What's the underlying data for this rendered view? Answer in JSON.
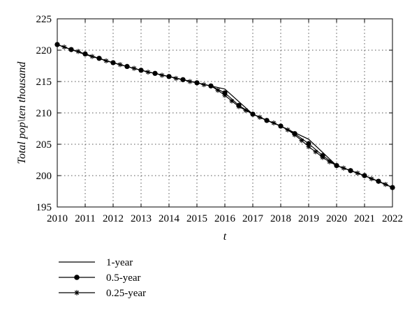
{
  "chart_data": {
    "type": "line",
    "xlabel": "t",
    "ylabel": "Total pop\\ten thousand",
    "xlim": [
      2010,
      2022
    ],
    "ylim": [
      195,
      225
    ],
    "x_ticks": [
      2010,
      2011,
      2012,
      2013,
      2014,
      2015,
      2016,
      2017,
      2018,
      2019,
      2020,
      2021,
      2022
    ],
    "y_ticks": [
      195,
      200,
      205,
      210,
      215,
      220,
      225
    ],
    "grid": true,
    "legend_position": "bottom-left",
    "series": [
      {
        "name": "1-year",
        "marker": "none",
        "x": [
          2010,
          2011,
          2012,
          2013,
          2014,
          2015,
          2016,
          2017,
          2018,
          2019,
          2020,
          2021,
          2022
        ],
        "y": [
          220.9,
          219.3,
          218.0,
          216.8,
          215.8,
          214.8,
          213.8,
          209.8,
          207.9,
          205.8,
          201.6,
          200.0,
          198.1
        ]
      },
      {
        "name": "0.5-year",
        "marker": "circle",
        "x": [
          2010,
          2010.5,
          2011,
          2011.5,
          2012,
          2012.5,
          2013,
          2013.5,
          2014,
          2014.5,
          2015,
          2015.5,
          2016,
          2016.5,
          2017,
          2017.5,
          2018,
          2018.5,
          2019,
          2019.5,
          2020,
          2020.5,
          2021,
          2021.5,
          2022
        ],
        "y": [
          220.9,
          220.1,
          219.4,
          218.7,
          218.0,
          217.4,
          216.8,
          216.3,
          215.8,
          215.3,
          214.8,
          214.3,
          213.2,
          211.2,
          209.8,
          208.8,
          207.9,
          206.7,
          205.1,
          203.2,
          201.6,
          200.8,
          200.0,
          199.1,
          198.1
        ]
      },
      {
        "name": "0.25-year",
        "marker": "star",
        "x": [
          2010,
          2010.25,
          2010.5,
          2010.75,
          2011,
          2011.25,
          2011.5,
          2011.75,
          2012,
          2012.25,
          2012.5,
          2012.75,
          2013,
          2013.25,
          2013.5,
          2013.75,
          2014,
          2014.25,
          2014.5,
          2014.75,
          2015,
          2015.25,
          2015.5,
          2015.75,
          2016,
          2016.25,
          2016.5,
          2016.75,
          2017,
          2017.25,
          2017.5,
          2017.75,
          2018,
          2018.25,
          2018.5,
          2018.75,
          2019,
          2019.25,
          2019.5,
          2019.75,
          2020,
          2020.25,
          2020.5,
          2020.75,
          2021,
          2021.25,
          2021.5,
          2021.75,
          2022
        ],
        "y": [
          220.9,
          220.5,
          220.1,
          219.8,
          219.4,
          219.0,
          218.7,
          218.3,
          218.0,
          217.7,
          217.4,
          217.1,
          216.8,
          216.5,
          216.3,
          216.0,
          215.8,
          215.5,
          215.3,
          215.0,
          214.8,
          214.5,
          214.3,
          213.6,
          212.8,
          211.9,
          211.0,
          210.4,
          209.8,
          209.3,
          208.8,
          208.4,
          207.9,
          207.3,
          206.5,
          205.6,
          204.6,
          203.8,
          202.9,
          202.2,
          201.6,
          201.2,
          200.8,
          200.4,
          200.0,
          199.5,
          199.1,
          198.6,
          198.1
        ]
      }
    ]
  }
}
